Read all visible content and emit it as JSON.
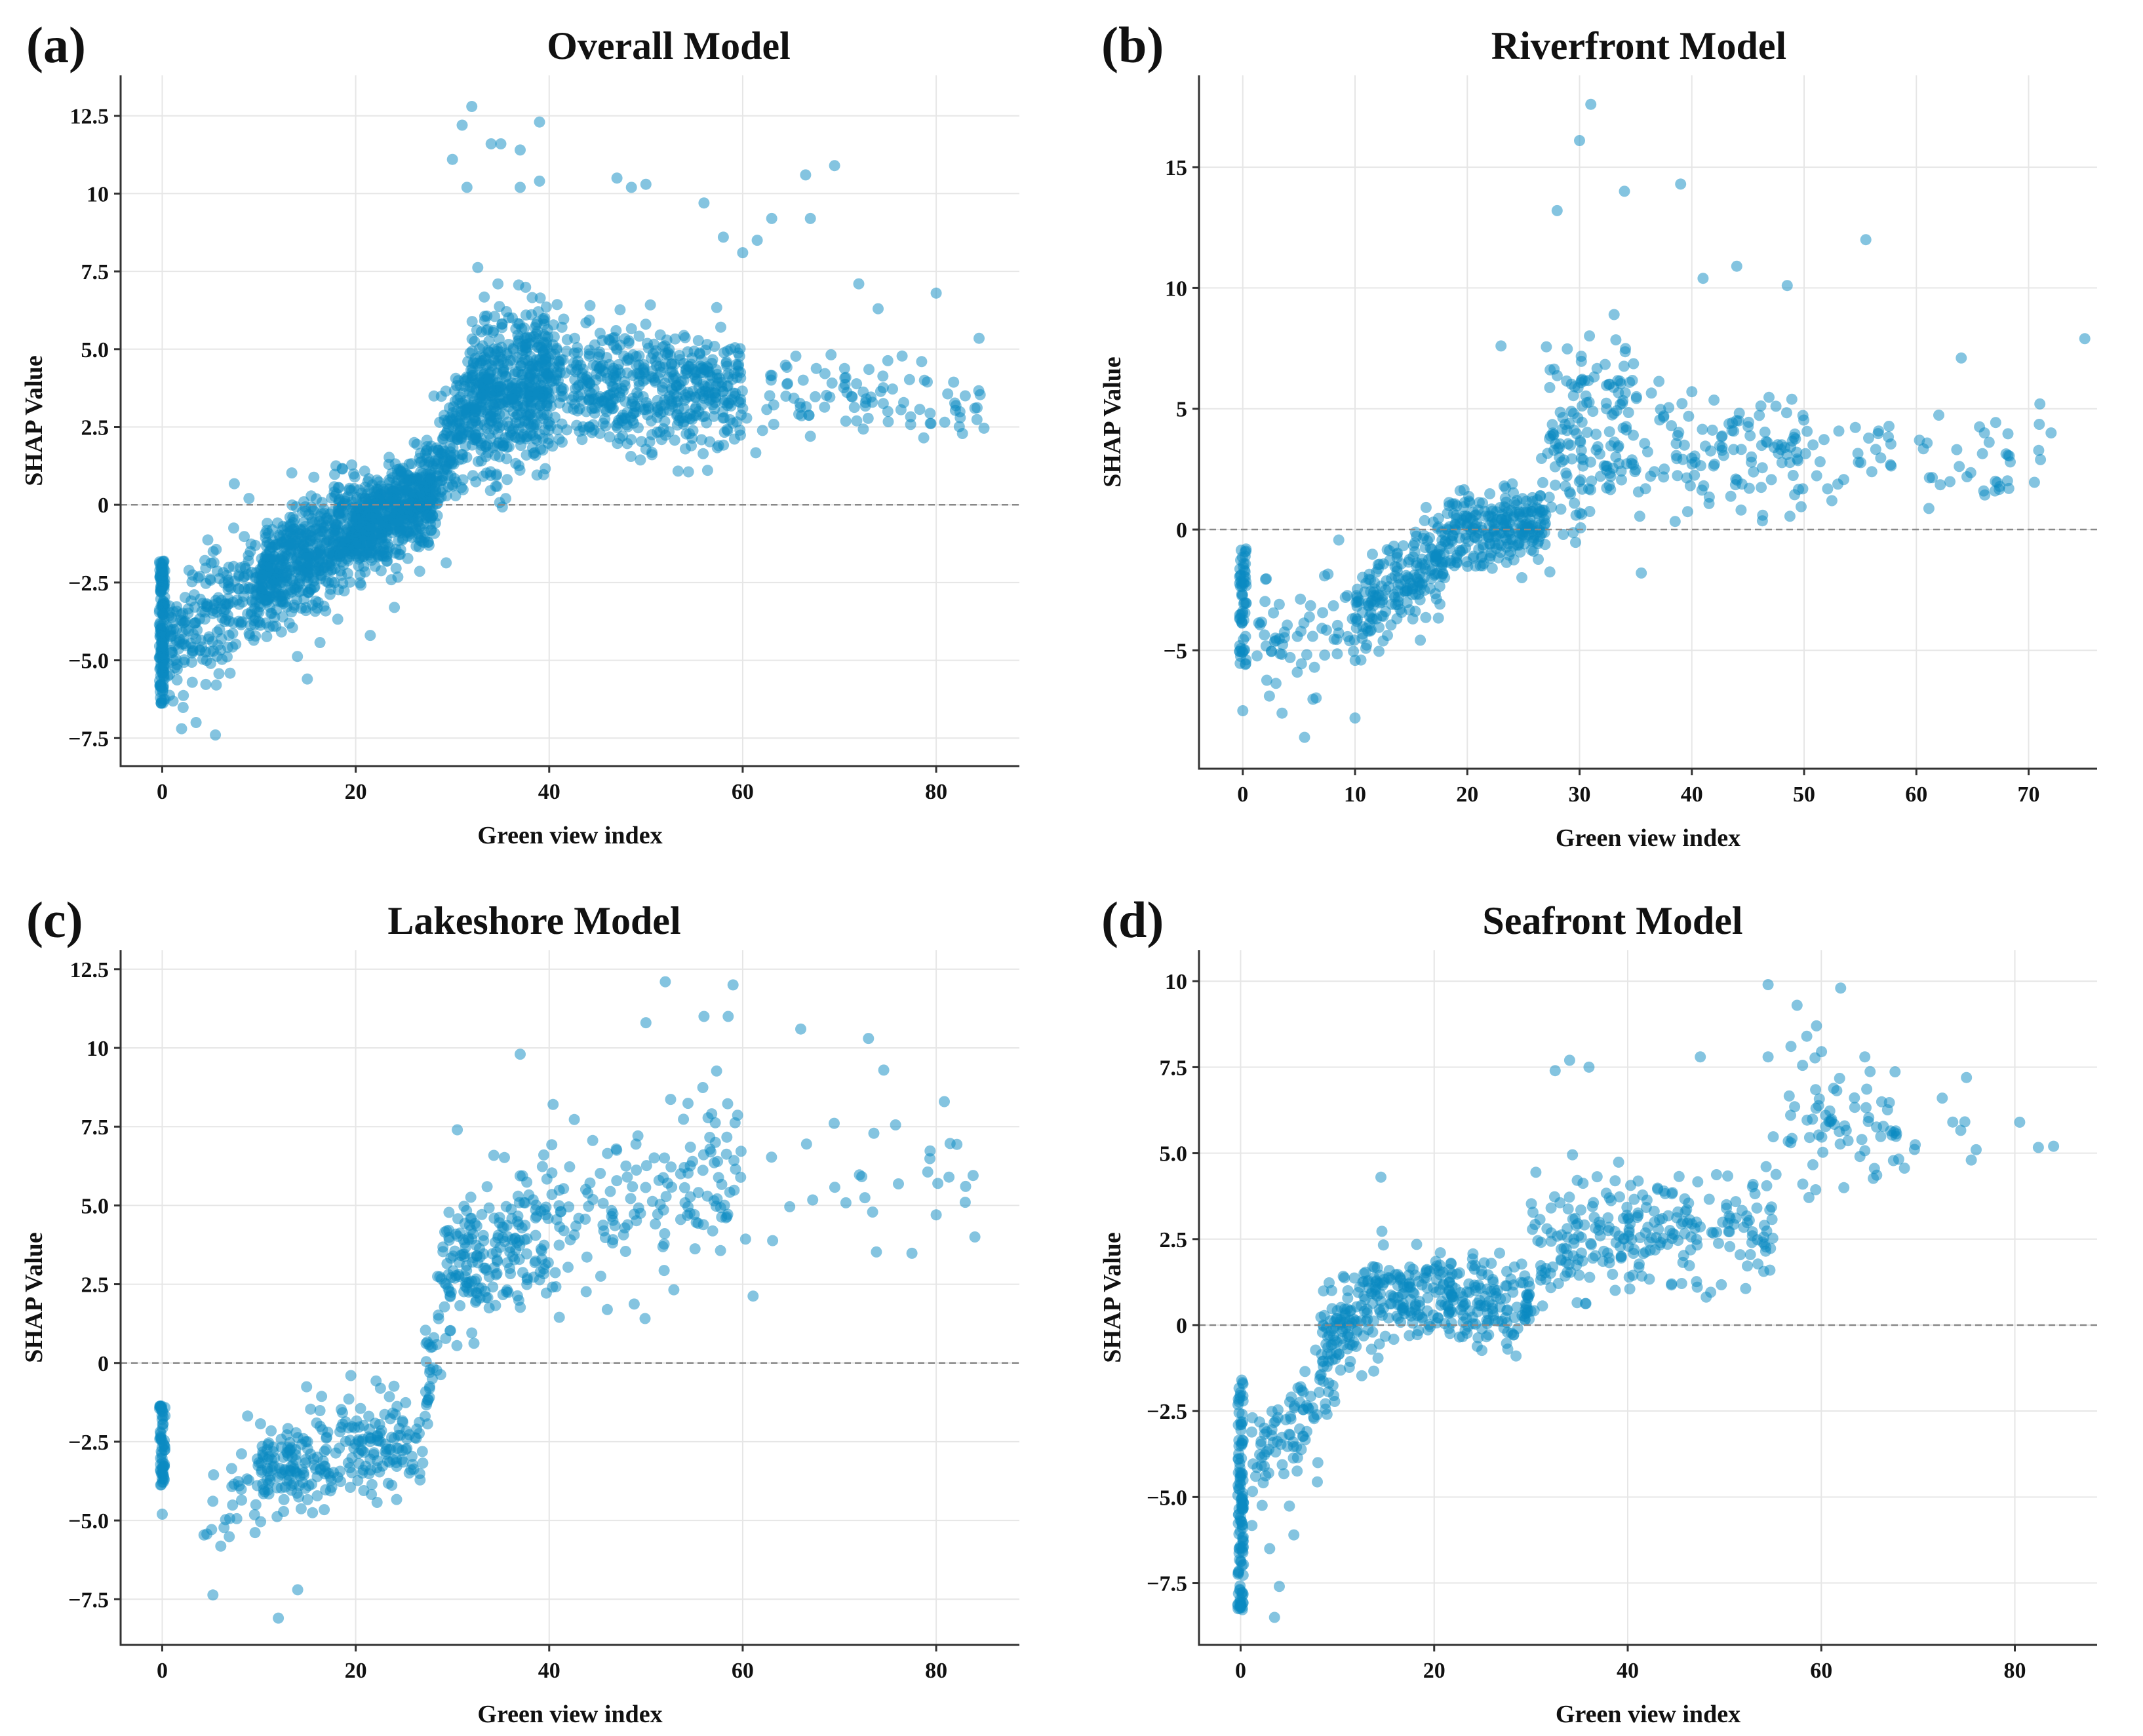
{
  "point_color": "#0a89c2",
  "chart_data": [
    {
      "type": "scatter",
      "panel_label": "(a)",
      "title": "Overall Model",
      "xlabel": "Green view index",
      "ylabel": "SHAP Value",
      "xlim": [
        -4.3,
        88.6
      ],
      "ylim": [
        -8.4,
        13.8
      ],
      "xticks": [
        0,
        20,
        40,
        60,
        80
      ],
      "xtick_labels": [
        "0",
        "20",
        "40",
        "60",
        "80"
      ],
      "yticks": [
        -7.5,
        -5,
        -2.5,
        0,
        2.5,
        5,
        7.5,
        10,
        12.5
      ],
      "ytick_labels": [
        "−7.5",
        "−5.0",
        "−2.5",
        "0",
        "2.5",
        "5.0",
        "7.5",
        "10",
        "12.5"
      ],
      "grid": true,
      "zero_line": true,
      "zero_column": {
        "x": 0,
        "ymin": -6.4,
        "ymax": -1.8,
        "count": 160
      },
      "bands": [
        [
          0.5,
          10,
          -4.5,
          -2.5,
          1.3,
          220
        ],
        [
          10,
          20,
          -2.5,
          -0.8,
          1.2,
          550
        ],
        [
          20,
          28,
          -0.8,
          0.3,
          1.0,
          550
        ],
        [
          28,
          32,
          0.5,
          3.5,
          1.2,
          160
        ],
        [
          32,
          40,
          3.5,
          4.0,
          1.6,
          520
        ],
        [
          40,
          60,
          4.0,
          3.5,
          1.3,
          520
        ],
        [
          60,
          85,
          3.5,
          3.3,
          1.0,
          90
        ]
      ],
      "points": [
        [
          32,
          12.8
        ],
        [
          31,
          12.2
        ],
        [
          34,
          11.6
        ],
        [
          35,
          11.6
        ],
        [
          37,
          11.4
        ],
        [
          39,
          12.3
        ],
        [
          30,
          11.1
        ],
        [
          31.5,
          10.2
        ],
        [
          37,
          10.2
        ],
        [
          39,
          10.4
        ],
        [
          47,
          10.5
        ],
        [
          48.5,
          10.2
        ],
        [
          50,
          10.3
        ],
        [
          66.5,
          10.6
        ],
        [
          69.5,
          10.9
        ],
        [
          67,
          9.2
        ],
        [
          56,
          9.7
        ],
        [
          63,
          9.2
        ],
        [
          61.5,
          8.5
        ],
        [
          60,
          8.1
        ],
        [
          58,
          8.6
        ],
        [
          72,
          7.1
        ],
        [
          80,
          6.8
        ],
        [
          74,
          6.3
        ],
        [
          78.5,
          4.6
        ],
        [
          84,
          3.1
        ],
        [
          83,
          3.5
        ],
        [
          75,
          3.0
        ],
        [
          67,
          2.2
        ],
        [
          35.5,
          0.2
        ],
        [
          5.5,
          -7.4
        ],
        [
          2,
          -7.2
        ],
        [
          3.5,
          -7.0
        ],
        [
          21.5,
          -4.2
        ],
        [
          15,
          -5.6
        ],
        [
          24,
          -3.3
        ]
      ]
    },
    {
      "type": "scatter",
      "panel_label": "(b)",
      "title": "Riverfront Model",
      "xlabel": "Green view index",
      "ylabel": "SHAP Value",
      "xlim": [
        -3.9,
        76.1
      ],
      "ylim": [
        -9.9,
        18.8
      ],
      "xticks": [
        0,
        10,
        20,
        30,
        40,
        50,
        60,
        70
      ],
      "xtick_labels": [
        "0",
        "10",
        "20",
        "30",
        "40",
        "50",
        "60",
        "70"
      ],
      "yticks": [
        -5,
        0,
        5,
        10,
        15
      ],
      "ytick_labels": [
        "−5",
        "0",
        "5",
        "10",
        "15"
      ],
      "grid": true,
      "zero_line": true,
      "zero_column": {
        "x": 0,
        "ymin": -5.7,
        "ymax": -0.8,
        "count": 60
      },
      "bands": [
        [
          1,
          10,
          -5,
          -4,
          1.3,
          60
        ],
        [
          10,
          18,
          -3.5,
          -1,
          1.3,
          200
        ],
        [
          18,
          27,
          -0.3,
          0.5,
          1.0,
          250
        ],
        [
          27,
          35,
          3,
          5,
          2.5,
          150
        ],
        [
          35,
          50,
          3.5,
          3,
          1.8,
          120
        ],
        [
          50,
          72,
          3,
          3,
          1.2,
          60
        ]
      ],
      "points": [
        [
          31,
          17.6
        ],
        [
          30,
          16.1
        ],
        [
          39,
          14.3
        ],
        [
          34,
          14.0
        ],
        [
          28,
          13.2
        ],
        [
          44,
          10.9
        ],
        [
          55.5,
          12.0
        ],
        [
          48.5,
          10.1
        ],
        [
          41,
          10.4
        ],
        [
          75,
          7.9
        ],
        [
          64,
          7.1
        ],
        [
          71,
          5.2
        ],
        [
          72,
          4.0
        ],
        [
          66,
          1.6
        ],
        [
          67,
          1.6
        ],
        [
          23,
          7.6
        ],
        [
          35.5,
          -1.8
        ],
        [
          5.5,
          -8.6
        ],
        [
          0,
          -7.5
        ],
        [
          10,
          -7.8
        ],
        [
          3.5,
          -7.6
        ]
      ]
    },
    {
      "type": "scatter",
      "panel_label": "(c)",
      "title": "Lakeshore Model",
      "xlabel": "Green view index",
      "ylabel": "SHAP Value",
      "xlim": [
        -4.3,
        88.6
      ],
      "ylim": [
        -8.95,
        13.1
      ],
      "xticks": [
        0,
        20,
        40,
        60,
        80
      ],
      "xtick_labels": [
        "0",
        "20",
        "40",
        "60",
        "80"
      ],
      "yticks": [
        -7.5,
        -5,
        -2.5,
        0,
        2.5,
        5,
        7.5,
        10,
        12.5
      ],
      "ytick_labels": [
        "−7.5",
        "−5.0",
        "−2.5",
        "0",
        "2.5",
        "5.0",
        "7.5",
        "10",
        "12.5"
      ],
      "grid": true,
      "zero_line": true,
      "zero_column": {
        "x": 0,
        "ymin": -3.9,
        "ymax": -1.3,
        "count": 60
      },
      "bands": [
        [
          4,
          10,
          -5,
          -4,
          1.2,
          30
        ],
        [
          10,
          27,
          -3.2,
          -2.5,
          1.1,
          260
        ],
        [
          27,
          29,
          -1,
          2,
          1.2,
          30
        ],
        [
          29,
          40,
          3,
          4,
          1.3,
          200
        ],
        [
          40,
          60,
          4.5,
          6,
          1.8,
          150
        ],
        [
          60,
          84,
          6,
          5.5,
          1.7,
          30
        ]
      ],
      "points": [
        [
          52,
          12.1
        ],
        [
          59,
          12.0
        ],
        [
          56,
          11.0
        ],
        [
          58.5,
          11.0
        ],
        [
          66,
          10.6
        ],
        [
          73,
          10.3
        ],
        [
          50,
          10.8
        ],
        [
          37,
          9.8
        ],
        [
          83,
          5.1
        ],
        [
          84,
          4.0
        ],
        [
          80,
          4.7
        ],
        [
          12,
          -8.1
        ],
        [
          14,
          -7.2
        ],
        [
          0,
          -4.8
        ],
        [
          19.5,
          -0.4
        ],
        [
          30.5,
          7.4
        ]
      ]
    },
    {
      "type": "scatter",
      "panel_label": "(d)",
      "title": "Seafront Model",
      "xlabel": "Green view index",
      "ylabel": "SHAP Value",
      "xlim": [
        -4.3,
        88.5
      ],
      "ylim": [
        -9.3,
        10.9
      ],
      "xticks": [
        0,
        20,
        40,
        60,
        80
      ],
      "xtick_labels": [
        "0",
        "20",
        "40",
        "60",
        "80"
      ],
      "yticks": [
        -7.5,
        -5,
        -2.5,
        0,
        2.5,
        5,
        7.5,
        10
      ],
      "ytick_labels": [
        "−7.5",
        "−5.0",
        "−2.5",
        "0",
        "2.5",
        "5.0",
        "7.5",
        "10"
      ],
      "grid": true,
      "zero_line": true,
      "zero_column": {
        "x": 0,
        "ymin": -8.3,
        "ymax": -1.6,
        "count": 120
      },
      "bands": [
        [
          1,
          8,
          -4,
          -2.5,
          1.1,
          80
        ],
        [
          8,
          15,
          -1,
          1,
          1.1,
          150
        ],
        [
          15,
          30,
          1,
          0.5,
          0.8,
          250
        ],
        [
          30,
          55,
          2.5,
          2.8,
          1.2,
          250
        ],
        [
          55,
          68,
          5.5,
          6,
          1.4,
          70
        ],
        [
          68,
          85,
          5.5,
          5,
          0.8,
          8
        ]
      ],
      "points": [
        [
          54.5,
          9.9
        ],
        [
          62,
          9.8
        ],
        [
          57.5,
          9.3
        ],
        [
          59.5,
          8.7
        ],
        [
          58.5,
          8.4
        ],
        [
          47.5,
          7.8
        ],
        [
          54.5,
          7.8
        ],
        [
          64.5,
          7.8
        ],
        [
          34,
          7.7
        ],
        [
          36,
          7.5
        ],
        [
          32.5,
          7.4
        ],
        [
          75,
          7.2
        ],
        [
          72.5,
          6.6
        ],
        [
          80.5,
          5.9
        ],
        [
          84,
          5.2
        ],
        [
          75.5,
          4.8
        ],
        [
          76,
          5.1
        ],
        [
          14.5,
          4.3
        ],
        [
          3.5,
          -8.5
        ],
        [
          0,
          -8.2
        ],
        [
          4,
          -7.6
        ],
        [
          3,
          -6.5
        ],
        [
          5.5,
          -6.1
        ]
      ]
    }
  ]
}
